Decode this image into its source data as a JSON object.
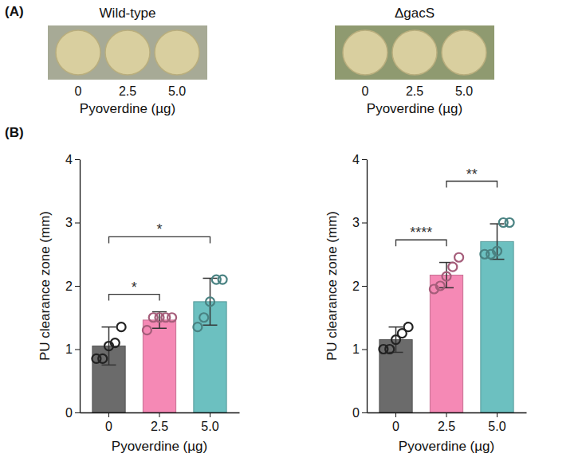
{
  "photo_panel": {
    "letter": "(A)",
    "images": [
      {
        "title": "Wild-type",
        "labels": [
          "0",
          "2.5",
          "5.0"
        ],
        "xlabel": "Pyoverdine (µg)"
      },
      {
        "title": "ΔgacS",
        "labels": [
          "0",
          "2.5",
          "5.0"
        ],
        "xlabel": "Pyoverdine (µg)"
      }
    ]
  },
  "charts_letter": "(B)",
  "chart_data": [
    {
      "type": "bar",
      "categories": [
        "0",
        "2.5",
        "5.0"
      ],
      "values": [
        1.05,
        1.46,
        1.75
      ],
      "errors": [
        0.3,
        0.13,
        0.37
      ],
      "points": [
        [
          0.85,
          0.85,
          1.05,
          1.1,
          1.35
        ],
        [
          1.3,
          1.5,
          1.5,
          1.5,
          1.5
        ],
        [
          1.35,
          1.5,
          1.75,
          2.1,
          2.1
        ]
      ],
      "colors": [
        "#6b6b6b",
        "#f589b5",
        "#6cc0c0"
      ],
      "xlabel": "Pyoverdine (µg)",
      "ylabel": "PU clearance zone (mm)",
      "ylim": [
        0,
        4
      ],
      "yticks": [
        0,
        1,
        2,
        3,
        4
      ],
      "comparisons": [
        {
          "from": 0,
          "to": 1,
          "label": "*"
        },
        {
          "from": 0,
          "to": 2,
          "label": "*"
        }
      ]
    },
    {
      "type": "bar",
      "categories": [
        "0",
        "2.5",
        "5.0"
      ],
      "values": [
        1.15,
        2.17,
        2.7
      ],
      "errors": [
        0.2,
        0.2,
        0.28
      ],
      "points": [
        [
          1.0,
          1.0,
          1.15,
          1.25,
          1.35
        ],
        [
          1.95,
          2.0,
          2.15,
          2.3,
          2.45
        ],
        [
          2.5,
          2.5,
          2.55,
          3.0,
          3.0
        ]
      ],
      "colors": [
        "#6b6b6b",
        "#f589b5",
        "#6cc0c0"
      ],
      "xlabel": "Pyoverdine (µg)",
      "ylabel": "PU clearance zone (mm)",
      "ylim": [
        0,
        4
      ],
      "yticks": [
        0,
        1,
        2,
        3,
        4
      ],
      "comparisons": [
        {
          "from": 0,
          "to": 1,
          "label": "****"
        },
        {
          "from": 1,
          "to": 2,
          "label": "**"
        }
      ]
    }
  ]
}
